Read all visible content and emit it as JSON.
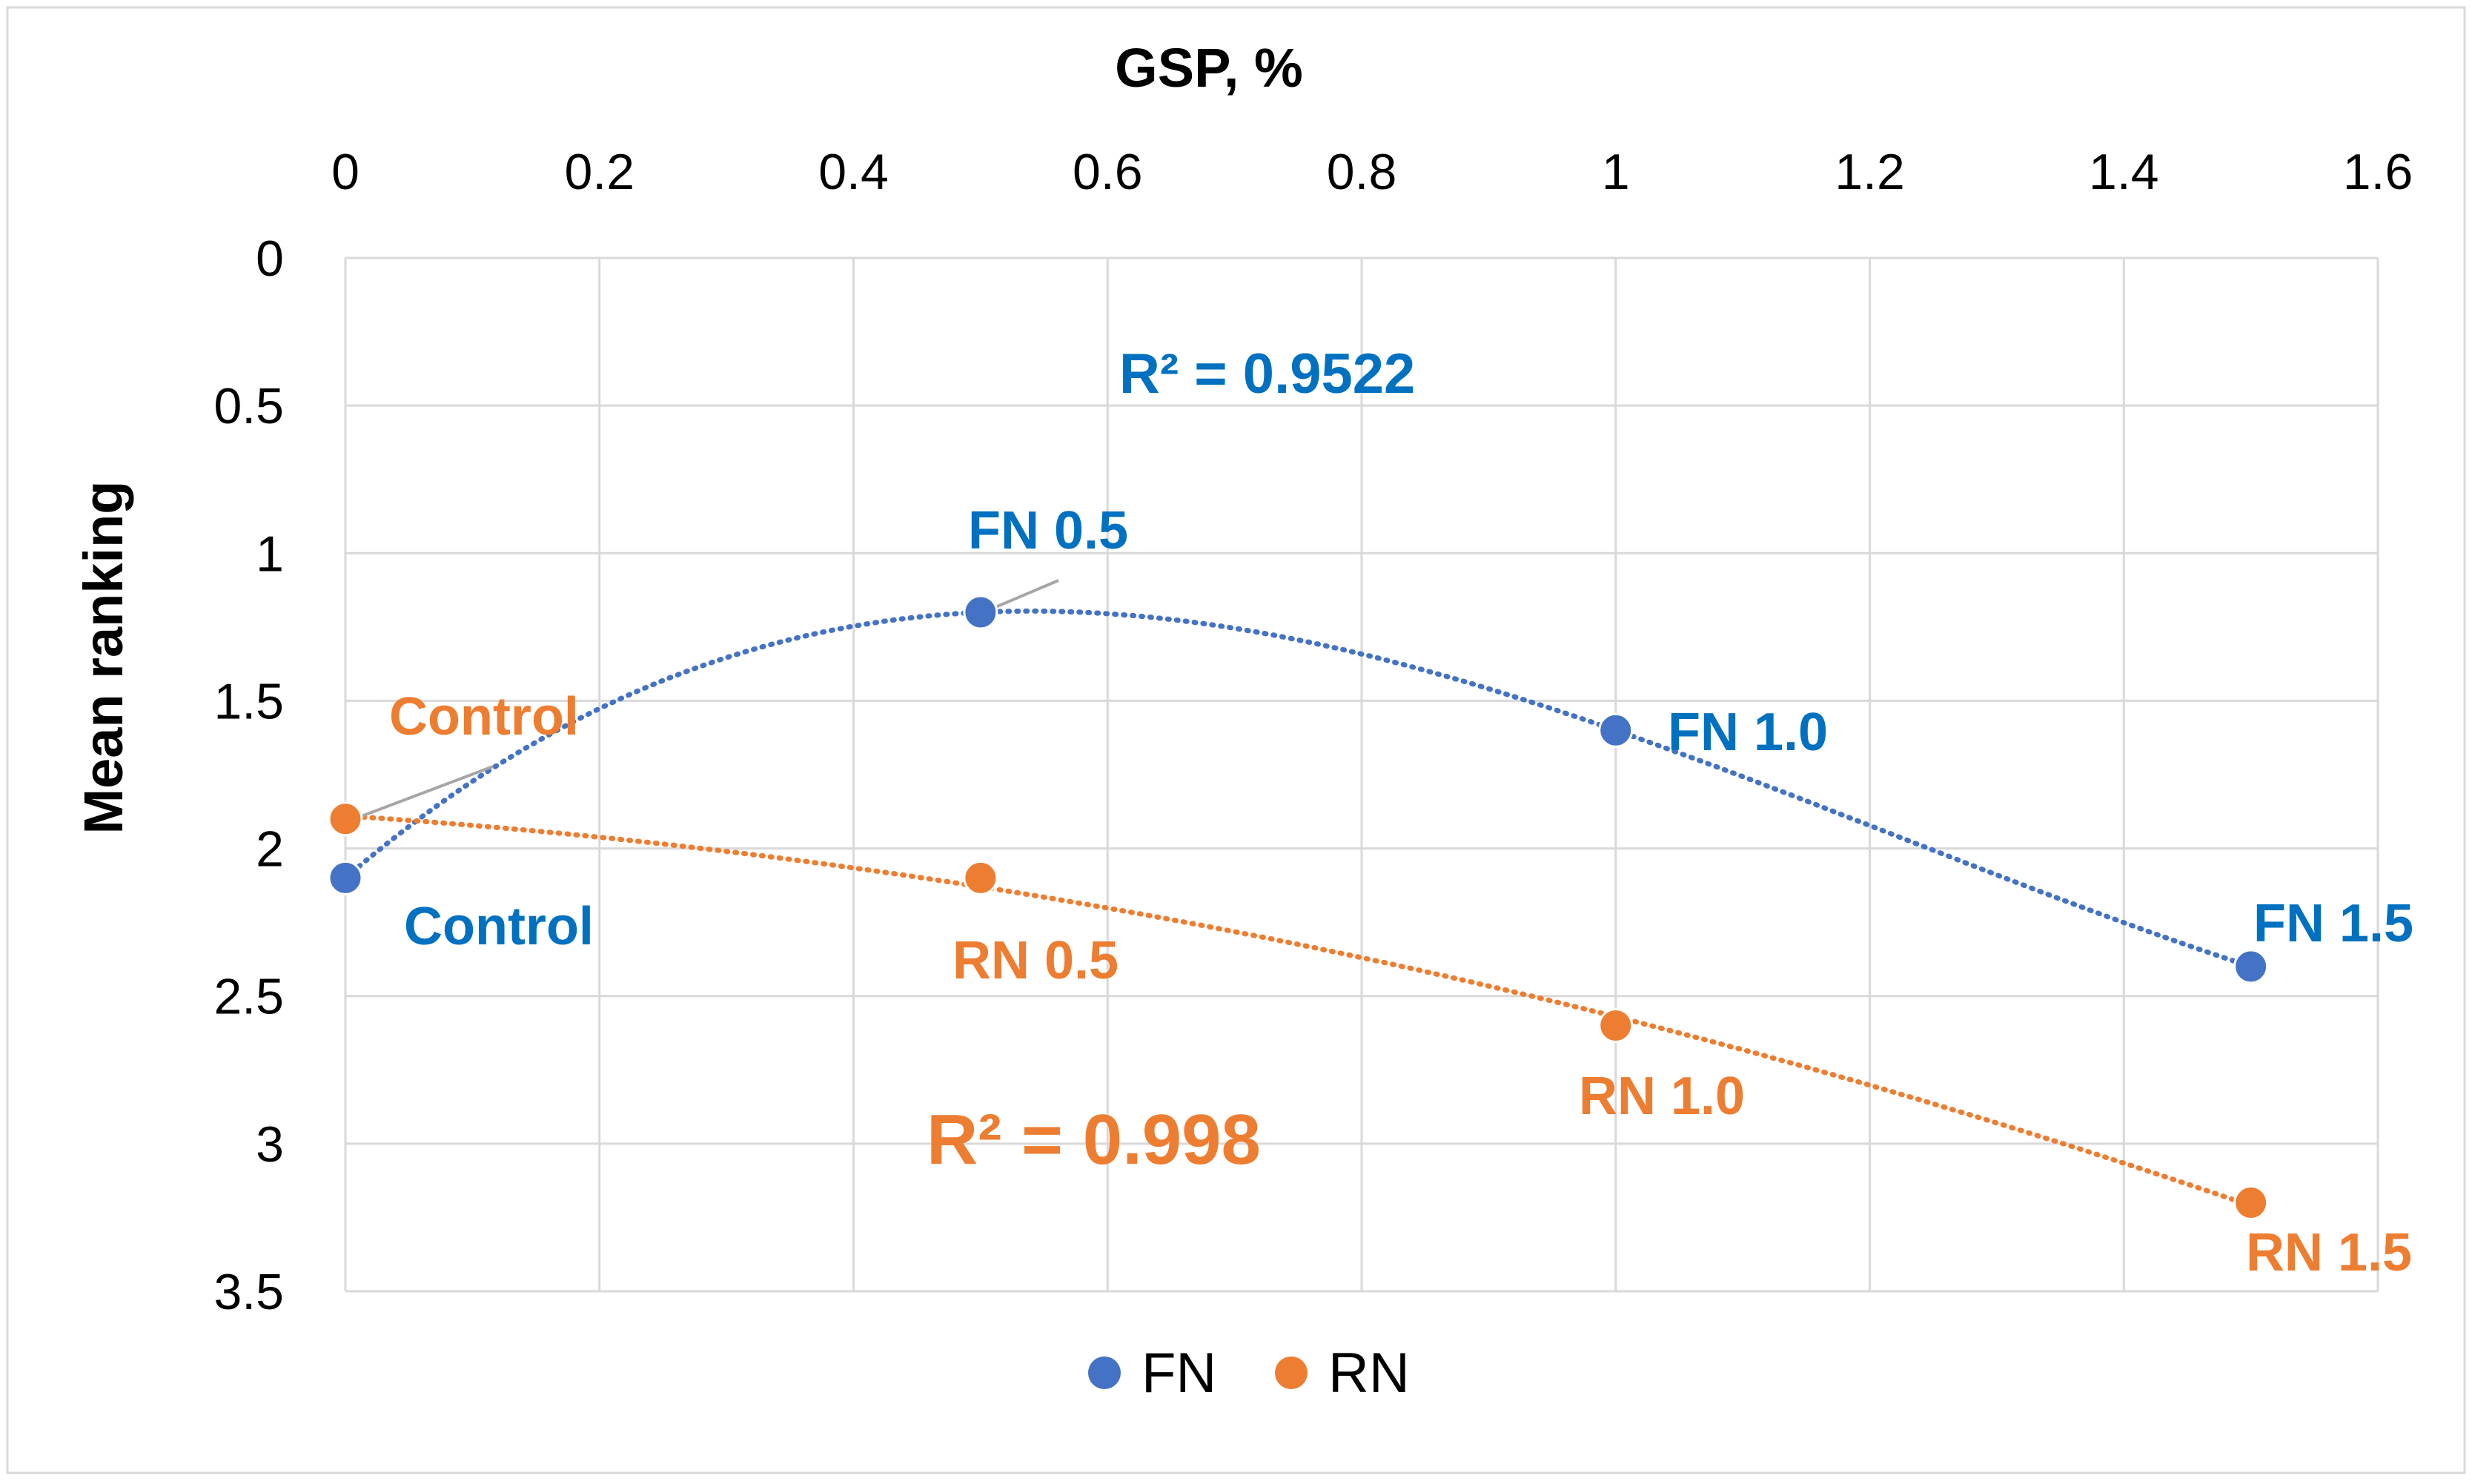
{
  "chart_data": {
    "type": "scatter",
    "title": "",
    "xlabel": "GSP, %",
    "ylabel": "Mean ranking",
    "xlim": [
      0,
      1.6
    ],
    "ylim": [
      0,
      3.5
    ],
    "y_reversed": true,
    "x_axis_position": "top",
    "grid": true,
    "x_ticks": [
      0,
      0.2,
      0.4,
      0.6,
      0.8,
      1,
      1.2,
      1.4,
      1.6
    ],
    "y_ticks": [
      0,
      0.5,
      1,
      1.5,
      2,
      2.5,
      3,
      3.5
    ],
    "legend_position": "bottom-center",
    "series": [
      {
        "name": "FN",
        "color": "#4472C4",
        "label_color": "#0070C0",
        "x": [
          0,
          0.5,
          1,
          1.5
        ],
        "y": [
          2.1,
          1.2,
          1.6,
          2.4
        ],
        "point_labels": [
          "Control",
          "FN 0.5",
          "FN 1.0",
          "FN 1.5"
        ],
        "trendline": {
          "type": "polynomial",
          "order": 3,
          "r2_label": "R² = 0.9522"
        }
      },
      {
        "name": "RN",
        "color": "#ED7D31",
        "label_color": "#ED7D31",
        "x": [
          0,
          0.5,
          1,
          1.5
        ],
        "y": [
          1.9,
          2.1,
          2.6,
          3.2
        ],
        "point_labels": [
          "Control",
          "RN 0.5",
          "RN 1.0",
          "RN 1.5"
        ],
        "trendline": {
          "type": "polynomial",
          "order": 2,
          "r2_label": "R² = 0.998"
        }
      }
    ]
  }
}
